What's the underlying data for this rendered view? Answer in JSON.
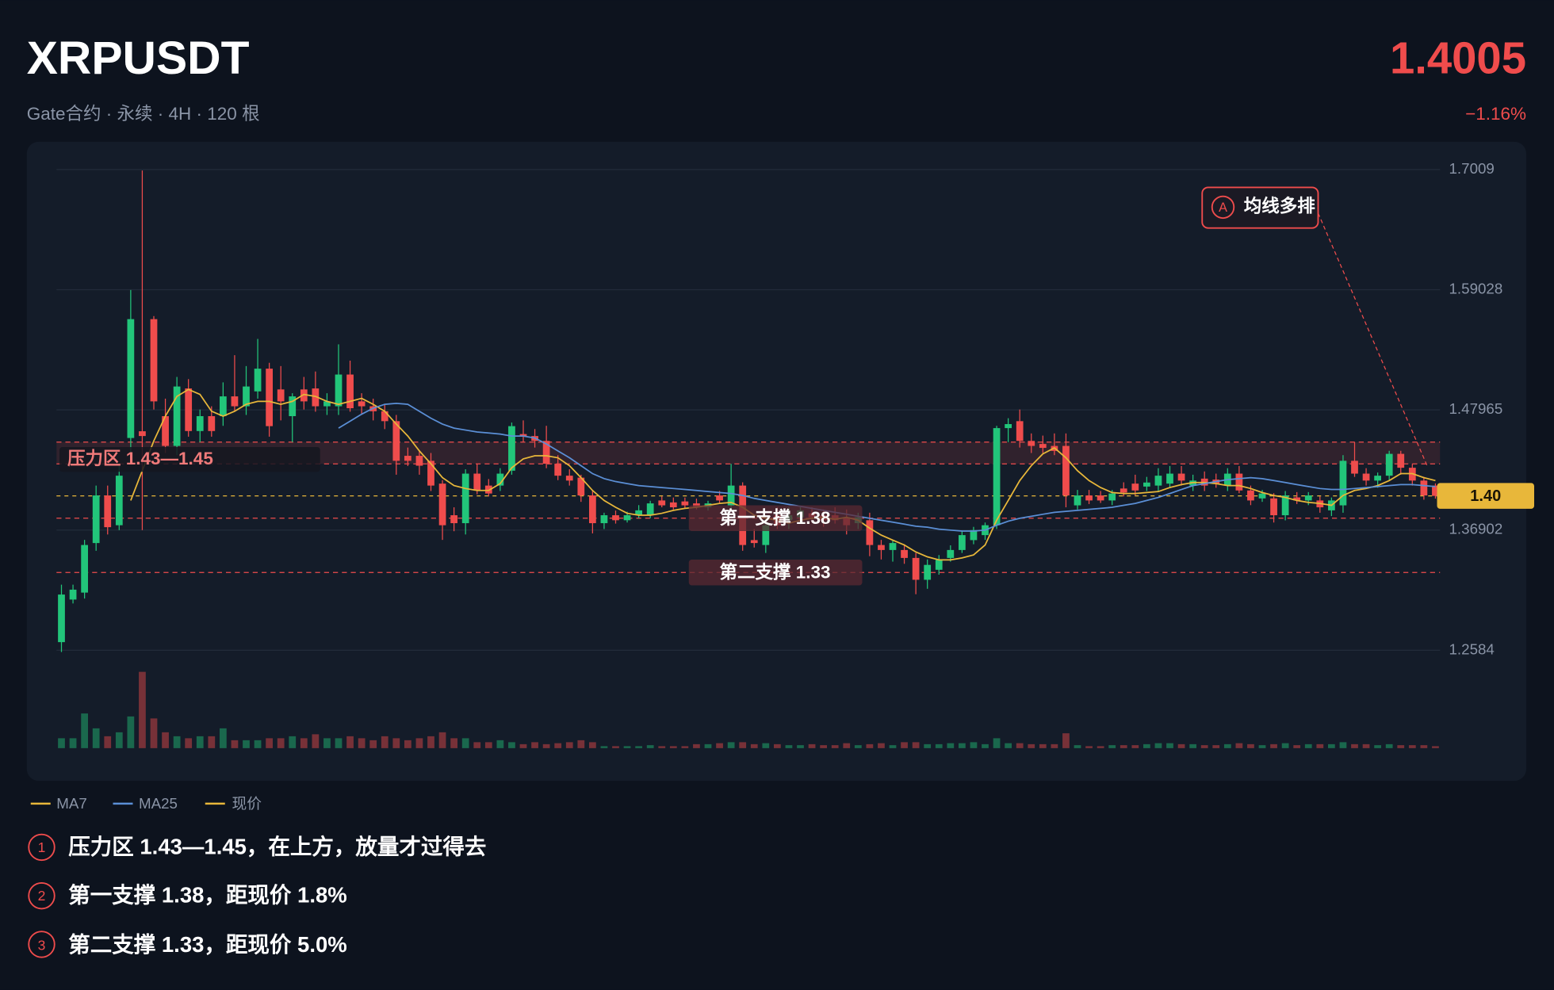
{
  "header": {
    "title": "XRPUSDT",
    "subtitle": "Gate合约 · 永续 · 4H · 120 根",
    "price": "1.4005",
    "change": "−1.16%"
  },
  "chart_data": {
    "type": "candlestick",
    "ylim": [
      1.24,
      1.72
    ],
    "yticks": [
      1.7009,
      1.59028,
      1.47965,
      1.36902,
      1.2584
    ],
    "grid": true,
    "up_color": "#22c57a",
    "down_color": "#ef4c4c",
    "candles": [
      [
        1.2659,
        1.3188,
        1.2568,
        1.3097
      ],
      [
        1.3051,
        1.3188,
        1.3015,
        1.3142
      ],
      [
        1.3115,
        1.36,
        1.306,
        1.3553
      ],
      [
        1.3571,
        1.41,
        1.35,
        1.4009
      ],
      [
        1.4009,
        1.41,
        1.365,
        1.3717
      ],
      [
        1.3735,
        1.43,
        1.369,
        1.4191
      ],
      [
        1.4538,
        1.59,
        1.44,
        1.5632
      ],
      [
        1.46,
        1.7,
        1.369,
        1.4556
      ],
      [
        1.5632,
        1.566,
        1.48,
        1.4875
      ],
      [
        1.4739,
        1.49,
        1.44,
        1.4465
      ],
      [
        1.4465,
        1.51,
        1.438,
        1.5012
      ],
      [
        1.4994,
        1.508,
        1.455,
        1.4602
      ],
      [
        1.4602,
        1.48,
        1.45,
        1.4739
      ],
      [
        1.4739,
        1.483,
        1.455,
        1.4602
      ],
      [
        1.4739,
        1.505,
        1.465,
        1.4921
      ],
      [
        1.4921,
        1.53,
        1.478,
        1.483
      ],
      [
        1.483,
        1.52,
        1.475,
        1.5012
      ],
      [
        1.4967,
        1.545,
        1.49,
        1.5176
      ],
      [
        1.5176,
        1.523,
        1.455,
        1.4647
      ],
      [
        1.4985,
        1.52,
        1.47,
        1.4875
      ],
      [
        1.4739,
        1.495,
        1.45,
        1.4921
      ],
      [
        1.4985,
        1.51,
        1.48,
        1.4875
      ],
      [
        1.4994,
        1.515,
        1.478,
        1.483
      ],
      [
        1.483,
        1.495,
        1.475,
        1.4875
      ],
      [
        1.483,
        1.54,
        1.475,
        1.5122
      ],
      [
        1.5122,
        1.525,
        1.478,
        1.4812
      ],
      [
        1.4875,
        1.495,
        1.476,
        1.483
      ],
      [
        1.483,
        1.49,
        1.47,
        1.4784
      ],
      [
        1.4784,
        1.485,
        1.462,
        1.4693
      ],
      [
        1.4693,
        1.475,
        1.42,
        1.4328
      ],
      [
        1.4374,
        1.445,
        1.428,
        1.4328
      ],
      [
        1.4374,
        1.442,
        1.42,
        1.4283
      ],
      [
        1.4328,
        1.44,
        1.405,
        1.41
      ],
      [
        1.4118,
        1.415,
        1.36,
        1.3735
      ],
      [
        1.3827,
        1.39,
        1.368,
        1.3754
      ],
      [
        1.3754,
        1.425,
        1.365,
        1.421
      ],
      [
        1.421,
        1.43,
        1.402,
        1.4055
      ],
      [
        1.41,
        1.416,
        1.4,
        1.4027
      ],
      [
        1.41,
        1.426,
        1.405,
        1.421
      ],
      [
        1.4237,
        1.468,
        1.42,
        1.4647
      ],
      [
        1.4574,
        1.47,
        1.45,
        1.4556
      ],
      [
        1.4556,
        1.462,
        1.445,
        1.4511
      ],
      [
        1.4511,
        1.465,
        1.426,
        1.4301
      ],
      [
        1.4301,
        1.438,
        1.415,
        1.4191
      ],
      [
        1.4191,
        1.425,
        1.41,
        1.4146
      ],
      [
        1.4173,
        1.42,
        1.395,
        1.4009
      ],
      [
        1.4009,
        1.405,
        1.366,
        1.3754
      ],
      [
        1.3754,
        1.385,
        1.37,
        1.3827
      ],
      [
        1.3827,
        1.387,
        1.375,
        1.3781
      ],
      [
        1.3781,
        1.386,
        1.376,
        1.3827
      ],
      [
        1.3827,
        1.392,
        1.38,
        1.3872
      ],
      [
        1.3827,
        1.396,
        1.38,
        1.3936
      ],
      [
        1.3963,
        1.4,
        1.39,
        1.3918
      ],
      [
        1.3945,
        1.399,
        1.388,
        1.39
      ],
      [
        1.3954,
        1.399,
        1.389,
        1.3918
      ],
      [
        1.3936,
        1.398,
        1.388,
        1.39
      ],
      [
        1.39,
        1.396,
        1.387,
        1.3936
      ],
      [
        1.4009,
        1.405,
        1.394,
        1.3963
      ],
      [
        1.3918,
        1.43,
        1.386,
        1.41
      ],
      [
        1.41,
        1.413,
        1.35,
        1.3553
      ],
      [
        1.3598,
        1.37,
        1.353,
        1.3571
      ],
      [
        1.3553,
        1.38,
        1.348,
        1.3735
      ],
      [
        1.3827,
        1.39,
        1.37,
        1.3735
      ],
      [
        1.3781,
        1.39,
        1.37,
        1.3827
      ],
      [
        1.3808,
        1.39,
        1.375,
        1.3872
      ],
      [
        1.3845,
        1.39,
        1.376,
        1.3808
      ],
      [
        1.3827,
        1.388,
        1.372,
        1.3781
      ],
      [
        1.3827,
        1.39,
        1.375,
        1.3781
      ],
      [
        1.3808,
        1.388,
        1.365,
        1.3735
      ],
      [
        1.3754,
        1.385,
        1.37,
        1.3808
      ],
      [
        1.3781,
        1.385,
        1.345,
        1.3553
      ],
      [
        1.3553,
        1.36,
        1.342,
        1.3507
      ],
      [
        1.3507,
        1.36,
        1.34,
        1.3571
      ],
      [
        1.3507,
        1.356,
        1.338,
        1.3434
      ],
      [
        1.3434,
        1.348,
        1.31,
        1.3233
      ],
      [
        1.3233,
        1.342,
        1.315,
        1.337
      ],
      [
        1.3325,
        1.346,
        1.328,
        1.3416
      ],
      [
        1.3434,
        1.355,
        1.34,
        1.3507
      ],
      [
        1.3507,
        1.368,
        1.348,
        1.3644
      ],
      [
        1.3598,
        1.372,
        1.356,
        1.369
      ],
      [
        1.3644,
        1.376,
        1.36,
        1.3735
      ],
      [
        1.3735,
        1.465,
        1.37,
        1.4629
      ],
      [
        1.4629,
        1.472,
        1.45,
        1.4666
      ],
      [
        1.4693,
        1.48,
        1.445,
        1.4511
      ],
      [
        1.4511,
        1.458,
        1.44,
        1.4465
      ],
      [
        1.4483,
        1.456,
        1.44,
        1.4447
      ],
      [
        1.4465,
        1.458,
        1.438,
        1.4419
      ],
      [
        1.4465,
        1.458,
        1.39,
        1.4009
      ],
      [
        1.3918,
        1.406,
        1.388,
        1.4009
      ],
      [
        1.4009,
        1.406,
        1.393,
        1.3963
      ],
      [
        1.4009,
        1.405,
        1.394,
        1.3963
      ],
      [
        1.3963,
        1.406,
        1.392,
        1.4027
      ],
      [
        1.4073,
        1.413,
        1.4,
        1.4036
      ],
      [
        1.4118,
        1.42,
        1.401,
        1.4055
      ],
      [
        1.4091,
        1.418,
        1.405,
        1.4128
      ],
      [
        1.41,
        1.426,
        1.405,
        1.4191
      ],
      [
        1.4118,
        1.428,
        1.408,
        1.421
      ],
      [
        1.421,
        1.428,
        1.41,
        1.4146
      ],
      [
        1.41,
        1.42,
        1.405,
        1.4146
      ],
      [
        1.4164,
        1.423,
        1.405,
        1.41
      ],
      [
        1.4155,
        1.421,
        1.408,
        1.4118
      ],
      [
        1.41,
        1.426,
        1.405,
        1.421
      ],
      [
        1.421,
        1.428,
        1.403,
        1.4055
      ],
      [
        1.4055,
        1.41,
        1.392,
        1.3963
      ],
      [
        1.3982,
        1.406,
        1.395,
        1.4027
      ],
      [
        1.3982,
        1.403,
        1.376,
        1.3827
      ],
      [
        1.3827,
        1.405,
        1.378,
        1.4009
      ],
      [
        1.3991,
        1.404,
        1.393,
        1.3963
      ],
      [
        1.3963,
        1.404,
        1.392,
        1.4009
      ],
      [
        1.3963,
        1.4,
        1.385,
        1.39
      ],
      [
        1.3872,
        1.399,
        1.382,
        1.3963
      ],
      [
        1.3918,
        1.438,
        1.385,
        1.4328
      ],
      [
        1.4328,
        1.45,
        1.418,
        1.421
      ],
      [
        1.421,
        1.426,
        1.41,
        1.4146
      ],
      [
        1.4146,
        1.422,
        1.408,
        1.4191
      ],
      [
        1.4191,
        1.442,
        1.415,
        1.4392
      ],
      [
        1.4392,
        1.442,
        1.42,
        1.4264
      ],
      [
        1.4264,
        1.43,
        1.41,
        1.4146
      ],
      [
        1.4146,
        1.418,
        1.397,
        1.4009
      ],
      [
        1.41,
        1.412,
        1.398,
        1.4005
      ]
    ],
    "volume": [
      10,
      10,
      35,
      20,
      12,
      16,
      32,
      77,
      30,
      16,
      12,
      10,
      12,
      12,
      20,
      8,
      8,
      8,
      10,
      10,
      12,
      10,
      14,
      10,
      10,
      12,
      10,
      8,
      12,
      10,
      8,
      10,
      12,
      16,
      10,
      10,
      6,
      6,
      8,
      6,
      4,
      6,
      4,
      5,
      6,
      8,
      6,
      2,
      2,
      2,
      2,
      3,
      2,
      2,
      2,
      4,
      4,
      5,
      6,
      6,
      4,
      5,
      4,
      3,
      3,
      4,
      3,
      3,
      5,
      3,
      4,
      5,
      3,
      6,
      6,
      4,
      4,
      5,
      5,
      6,
      4,
      10,
      5,
      5,
      4,
      4,
      4,
      15,
      3,
      2,
      2,
      3,
      3,
      3,
      4,
      5,
      5,
      4,
      4,
      3,
      3,
      4,
      5,
      4,
      3,
      4,
      5,
      3,
      4,
      4,
      4,
      6,
      4,
      4,
      3,
      4,
      3,
      3,
      3,
      2
    ],
    "series": [
      {
        "name": "MA7",
        "color": "#e8b73a",
        "values": [
          null,
          null,
          null,
          null,
          null,
          null,
          1.3963,
          1.4237,
          1.4511,
          1.4739,
          1.4921,
          1.4985,
          1.4939,
          1.4784,
          1.4739,
          1.4784,
          1.4848,
          1.4875,
          1.4875,
          1.4848,
          1.4875,
          1.4939,
          1.4921,
          1.4875,
          1.4848,
          1.4875,
          1.4903,
          1.4848,
          1.4784,
          1.4666,
          1.4556,
          1.4419,
          1.4301,
          1.4173,
          1.41,
          1.4073,
          1.4055,
          1.4055,
          1.4118,
          1.4264,
          1.4346,
          1.4374,
          1.4374,
          1.4356,
          1.4283,
          1.4173,
          1.4055,
          1.3963,
          1.39,
          1.3845,
          1.3827,
          1.3827,
          1.3845,
          1.3872,
          1.389,
          1.39,
          1.3918,
          1.3936,
          1.3945,
          1.39,
          1.3827,
          1.3799,
          1.3781,
          1.3754,
          1.3781,
          1.3799,
          1.3808,
          1.379,
          1.3808,
          1.3781,
          1.3708,
          1.3644,
          1.3598,
          1.3553,
          1.3489,
          1.3444,
          1.3416,
          1.3416,
          1.3434,
          1.3462,
          1.3553,
          1.3781,
          1.3963,
          1.4146,
          1.4283,
          1.4392,
          1.4447,
          1.4356,
          1.4237,
          1.4146,
          1.4082,
          1.4036,
          1.4027,
          1.4027,
          1.4036,
          1.4045,
          1.4082,
          1.4109,
          1.4128,
          1.4128,
          1.4118,
          1.41,
          1.41,
          1.4073,
          1.4036,
          1.4009,
          1.3991,
          1.3963,
          1.3945,
          1.3936,
          1.3918,
          1.4009,
          1.4055,
          1.4073,
          1.41,
          1.4146,
          1.421,
          1.421,
          1.4173,
          1.4146
        ]
      },
      {
        "name": "MA25",
        "color": "#5b8fd6",
        "values": [
          null,
          null,
          null,
          null,
          null,
          null,
          null,
          null,
          null,
          null,
          null,
          null,
          null,
          null,
          null,
          null,
          null,
          null,
          null,
          null,
          null,
          null,
          null,
          null,
          1.4629,
          1.4693,
          1.4757,
          1.4812,
          1.4848,
          1.4857,
          1.4848,
          1.4784,
          1.472,
          1.4666,
          1.4629,
          1.4611,
          1.4593,
          1.4584,
          1.4574,
          1.4556,
          1.4556,
          1.4538,
          1.4483,
          1.4419,
          1.4356,
          1.4283,
          1.421,
          1.4164,
          1.4137,
          1.4118,
          1.41,
          1.4091,
          1.4082,
          1.4073,
          1.4064,
          1.4055,
          1.4045,
          1.4036,
          1.4027,
          1.4009,
          1.3982,
          1.3963,
          1.3945,
          1.3927,
          1.3909,
          1.389,
          1.3872,
          1.3854,
          1.3836,
          1.3817,
          1.3799,
          1.3781,
          1.3763,
          1.3745,
          1.3726,
          1.3717,
          1.3699,
          1.369,
          1.3681,
          1.3681,
          1.369,
          1.3735,
          1.3772,
          1.3799,
          1.3817,
          1.3836,
          1.3854,
          1.3863,
          1.3872,
          1.3881,
          1.389,
          1.39,
          1.3918,
          1.3936,
          1.3963,
          1.3991,
          1.4027,
          1.4064,
          1.41,
          1.4118,
          1.4137,
          1.4155,
          1.4164,
          1.4173,
          1.4164,
          1.4146,
          1.4128,
          1.4109,
          1.4091,
          1.4073,
          1.4064,
          1.4064,
          1.4073,
          1.4082,
          1.4091,
          1.41,
          1.4109,
          1.4109,
          1.41,
          1.4091
        ]
      }
    ],
    "current": {
      "name": "现价",
      "value": 1.4005,
      "label": "1.40",
      "color": "#e8b73a"
    },
    "zones": [
      {
        "label": "压力区 1.43—1.45",
        "range": [
          1.43,
          1.45
        ]
      }
    ],
    "levels": [
      {
        "label": "第一支撑 1.38",
        "value": 1.38
      },
      {
        "label": "第二支撑 1.33",
        "value": 1.33
      }
    ],
    "annotation": {
      "marker": "A",
      "text": "均线多排"
    }
  },
  "notes": [
    {
      "marker": "1",
      "text": "压力区 1.43—1.45，在上方，放量才过得去"
    },
    {
      "marker": "2",
      "text": "第一支撑 1.38，距现价 1.8%"
    },
    {
      "marker": "3",
      "text": "第二支撑 1.33，距现价 5.0%"
    }
  ]
}
